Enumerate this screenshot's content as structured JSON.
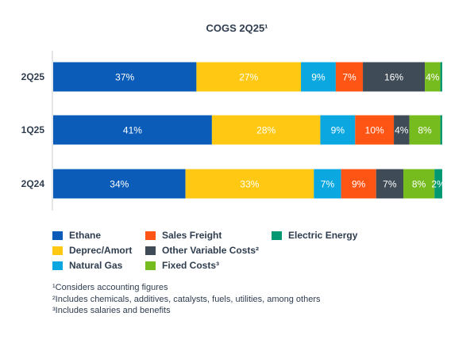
{
  "chart_data": {
    "type": "bar",
    "orientation": "horizontal",
    "stacked": true,
    "title": "COGS 2Q25¹",
    "categories": [
      "2Q25",
      "1Q25",
      "2Q24"
    ],
    "series": [
      {
        "name": "Ethane",
        "color": "#0a5cb8",
        "values": [
          37,
          41,
          34
        ],
        "labels": [
          "37%",
          "41%",
          "34%"
        ]
      },
      {
        "name": "Deprec/Amort",
        "color": "#ffc913",
        "values": [
          27,
          28,
          33
        ],
        "labels": [
          "27%",
          "28%",
          "33%"
        ]
      },
      {
        "name": "Natural Gas",
        "color": "#0aa7e0",
        "values": [
          9,
          9,
          7
        ],
        "labels": [
          "9%",
          "9%",
          "7%"
        ]
      },
      {
        "name": "Sales Freight",
        "color": "#ff5514",
        "values": [
          7,
          10,
          9
        ],
        "labels": [
          "7%",
          "10%",
          "9%"
        ]
      },
      {
        "name": "Other Variable Costs²",
        "color": "#3f4b56",
        "values": [
          16,
          4,
          7
        ],
        "labels": [
          "16%",
          "4%",
          "7%"
        ]
      },
      {
        "name": "Fixed Costs³",
        "color": "#77bc1f",
        "values": [
          4,
          8,
          8
        ],
        "labels": [
          "4%",
          "8%",
          "8%"
        ]
      },
      {
        "name": "Electric Energy",
        "color": "#009872",
        "values": [
          0.5,
          0.5,
          2
        ],
        "labels": [
          "",
          "",
          "2%"
        ]
      }
    ],
    "xlim": [
      0,
      100
    ],
    "grid": false,
    "legend_position": "bottom"
  },
  "legend": [
    {
      "label": "Ethane",
      "color": "#0a5cb8"
    },
    {
      "label": "Deprec/Amort",
      "color": "#ffc913"
    },
    {
      "label": "Natural Gas",
      "color": "#0aa7e0"
    },
    {
      "label": "Sales Freight",
      "color": "#ff5514"
    },
    {
      "label": "Other Variable Costs²",
      "color": "#3f4b56"
    },
    {
      "label": "Fixed Costs³",
      "color": "#77bc1f"
    },
    {
      "label": "Electric Energy",
      "color": "#009872"
    }
  ],
  "footnotes": [
    "¹Considers accounting figures",
    "²Includes chemicals, additives, catalysts, fuels, utilities, among others",
    "³Includes salaries and benefits"
  ]
}
